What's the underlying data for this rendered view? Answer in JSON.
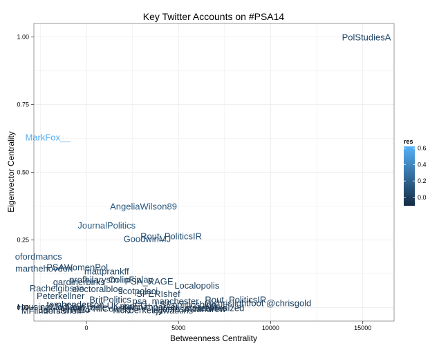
{
  "chart_data": {
    "type": "scatter",
    "title": "Key Twitter Accounts on #PSA14",
    "xlabel": "Betweenness Centrality",
    "ylabel": "Eigenvector Centrality",
    "xlim": [
      -2850,
      16700
    ],
    "ylim": [
      -0.05,
      1.05
    ],
    "x_ticks": [
      0,
      5000,
      10000,
      15000
    ],
    "x_tick_labels": [
      "0",
      "5000",
      "10000",
      "15000"
    ],
    "y_ticks": [
      0,
      0.25,
      0.5,
      0.75,
      1.0
    ],
    "y_tick_labels": [
      "0.00",
      "0.25",
      "0.50",
      "0.75",
      "1.00"
    ],
    "grid": true,
    "colors": {
      "low": "#132B43",
      "high": "#56B1F7",
      "panel_border": "#7f7f7f",
      "grid": "#ebebeb"
    },
    "legend": {
      "title": "res",
      "position": "right",
      "min": -0.1,
      "max": 0.62,
      "breaks": [
        0.0,
        0.2,
        0.4,
        0.6
      ],
      "break_labels": [
        "0.0",
        "0.2",
        "0.4",
        "0.6"
      ]
    },
    "points": [
      {
        "label": "PolStudiesA",
        "x": 15200,
        "y": 1.0,
        "res": 0.05
      },
      {
        "label": "MarkFox__",
        "x": -2100,
        "y": 0.63,
        "res": 0.6
      },
      {
        "label": "AngeliaWilson89",
        "x": 3100,
        "y": 0.375,
        "res": 0.15
      },
      {
        "label": "JournalPolitics",
        "x": 1100,
        "y": 0.305,
        "res": 0.15
      },
      {
        "label": "Rout_PoliticsIR",
        "x": 4600,
        "y": 0.265,
        "res": 0.1
      },
      {
        "label": "GoodwinMJ",
        "x": 3300,
        "y": 0.255,
        "res": 0.12
      },
      {
        "label": "ofordmancs",
        "x": -2600,
        "y": 0.19,
        "res": 0.1
      },
      {
        "label": "PSAWomenPol",
        "x": -500,
        "y": 0.15,
        "res": 0.05
      },
      {
        "label": "marthehovden",
        "x": -2300,
        "y": 0.145,
        "res": 0.05
      },
      {
        "label": "mattprankff",
        "x": 1100,
        "y": 0.135,
        "res": 0.05
      },
      {
        "label": "profhilarysm",
        "x": 400,
        "y": 0.105,
        "res": 0.02
      },
      {
        "label": "ColinFinlay",
        "x": 2400,
        "y": 0.105,
        "res": 0.02
      },
      {
        "label": "PSA_RAGE",
        "x": 3400,
        "y": 0.098,
        "res": 0.02
      },
      {
        "label": "gardinerbirks",
        "x": -400,
        "y": 0.095,
        "res": 0.0
      },
      {
        "label": "Localopolis",
        "x": 6000,
        "y": 0.083,
        "res": 0.02
      },
      {
        "label": "Rachelgibson",
        "x": -1600,
        "y": 0.073,
        "res": 0.0
      },
      {
        "label": "electoralblog",
        "x": 600,
        "y": 0.07,
        "res": 0.0
      },
      {
        "label": "scotpolsci",
        "x": 2800,
        "y": 0.062,
        "res": 0.0
      },
      {
        "label": "SPERIshef",
        "x": 3900,
        "y": 0.052,
        "res": 0.0
      },
      {
        "label": "Peterkellner",
        "x": -1400,
        "y": 0.045,
        "res": 0.0
      },
      {
        "label": "Rout_PoliticsIR",
        "x": 8100,
        "y": 0.03,
        "res": 0.0
      },
      {
        "label": "BritPolitics",
        "x": 1300,
        "y": 0.03,
        "res": -0.02
      },
      {
        "label": "psa_manchester",
        "x": 4300,
        "y": 0.025,
        "res": -0.02
      },
      {
        "label": "@chrislightfoot @chrisgold",
        "x": 9300,
        "y": 0.018,
        "res": 0.0
      },
      {
        "label": "LSEpoliticsblog",
        "x": 5400,
        "y": 0.013,
        "res": -0.02
      },
      {
        "label": "tomhenderson",
        "x": -600,
        "y": 0.012,
        "res": -0.05
      },
      {
        "label": "UKandEU",
        "x": 2200,
        "y": 0.008,
        "res": -0.05
      },
      {
        "label": "hannahparker",
        "x": 3500,
        "y": 0.004,
        "res": -0.05
      },
      {
        "label": "HousingMedia",
        "x": -2200,
        "y": 0.003,
        "res": -0.05
      },
      {
        "label": "stuartwilks",
        "x": 6500,
        "y": 0.001,
        "res": -0.05
      },
      {
        "label": "@PhilCowley",
        "x": 1000,
        "y": -0.003,
        "res": -0.06
      },
      {
        "label": "jamesmcandrew",
        "x": 5800,
        "y": -0.004,
        "res": -0.05
      },
      {
        "label": "Heathenized",
        "x": 7200,
        "y": 0.0,
        "res": -0.05
      },
      {
        "label": "JenniferNero",
        "x": -1200,
        "y": -0.006,
        "res": -0.07
      },
      {
        "label": "tim_bale",
        "x": 200,
        "y": 0.002,
        "res": -0.07
      },
      {
        "label": "nickberkeley",
        "x": 2800,
        "y": -0.008,
        "res": -0.08
      },
      {
        "label": "MFlindersSheff",
        "x": -1900,
        "y": -0.01,
        "res": -0.08
      },
      {
        "label": "rjdwatkins",
        "x": 4700,
        "y": -0.009,
        "res": -0.08
      }
    ]
  }
}
